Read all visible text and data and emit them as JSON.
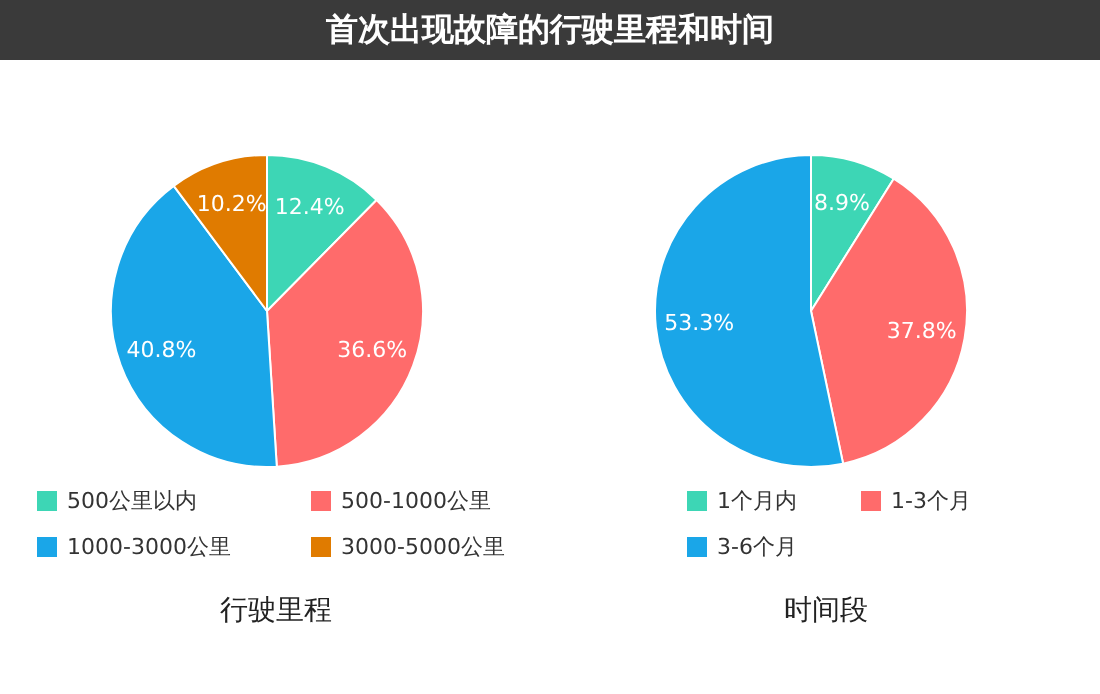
{
  "chart_data": [
    {
      "type": "pie",
      "title": "行驶里程",
      "annotations": [
        "首次出现故障的行驶里程和时间"
      ],
      "categories": [
        "500公里以内",
        "500-1000公里",
        "1000-3000公里",
        "3000-5000公里"
      ],
      "values": [
        12.4,
        36.6,
        40.8,
        10.2
      ],
      "colors": [
        "#3dd6b5",
        "#ff6b6b",
        "#1aa6e8",
        "#e07b00"
      ],
      "value_labels": [
        "12.4%",
        "36.6%",
        "40.8%",
        "10.2%"
      ],
      "legend": "bottom"
    },
    {
      "type": "pie",
      "title": "时间段",
      "categories": [
        "1个月内",
        "1-3个月",
        "3-6个月"
      ],
      "values": [
        8.9,
        37.8,
        53.3
      ],
      "colors": [
        "#3dd6b5",
        "#ff6b6b",
        "#1aa6e8"
      ],
      "value_labels": [
        "8.9%",
        "37.8%",
        "53.3%"
      ],
      "legend": "bottom"
    }
  ]
}
